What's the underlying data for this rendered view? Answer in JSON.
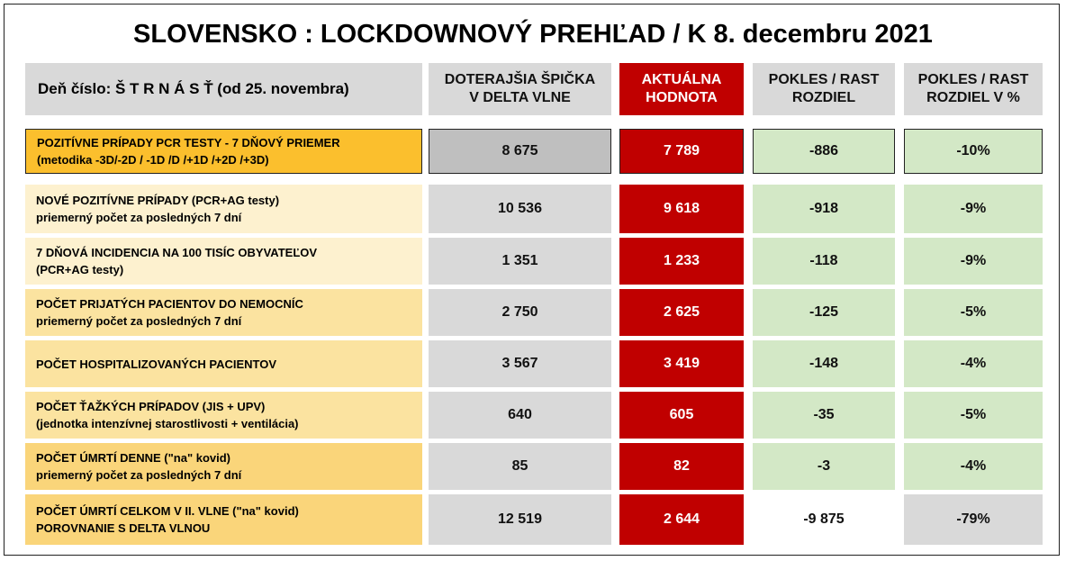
{
  "header": {
    "title": "SLOVENSKO : LOCKDOWNOVÝ PREHĽAD  / K 8. decembru 2021",
    "day_label": "Deň číslo:  Š T R N Á S Ť (od 25. novembra)",
    "columns": [
      [
        "DOTERAJŠIA ŠPIČKA",
        "V DELTA VLNE"
      ],
      [
        "AKTUÁLNA",
        "HODNOTA"
      ],
      [
        "POKLES / RAST",
        "ROZDIEL"
      ],
      [
        "POKLES / RAST",
        "ROZDIEL V %"
      ]
    ]
  },
  "table": {
    "rows": [
      {
        "label": [
          "POZITÍVNE PRÍPADY PCR TESTY - 7 DŇOVÝ PRIEMER",
          "(metodika -3D/-2D / -1D /D /+1D /+2D /+3D)"
        ],
        "cells": [
          "8 675",
          "7 789",
          "-886",
          "-10%"
        ]
      },
      {
        "label": [
          "NOVÉ POZITÍVNE PRÍPADY (PCR+AG testy)",
          "priemerný počet za posledných 7 dní"
        ],
        "cells": [
          "10 536",
          "9 618",
          "-918",
          "-9%"
        ]
      },
      {
        "label": [
          "7 DŇOVÁ INCIDENCIA NA 100 TISÍC OBYVATEĽOV",
          "(PCR+AG testy)"
        ],
        "cells": [
          "1 351",
          "1 233",
          "-118",
          "-9%"
        ]
      },
      {
        "label": [
          "POČET PRIJATÝCH PACIENTOV DO NEMOCNÍC",
          "priemerný počet za posledných 7 dní"
        ],
        "cells": [
          "2 750",
          "2 625",
          "-125",
          "-5%"
        ]
      },
      {
        "label": [
          "POČET HOSPITALIZOVANÝCH PACIENTOV"
        ],
        "cells": [
          "3 567",
          "3 419",
          "-148",
          "-4%"
        ]
      },
      {
        "label": [
          "POČET ŤAŽKÝCH PRÍPADOV (JIS + UPV)",
          "(jednotka intenzívnej starostlivosti + ventilácia)"
        ],
        "cells": [
          "640",
          "605",
          "-35",
          "-5%"
        ]
      },
      {
        "label": [
          "POČET ÚMRTÍ DENNE (\"na\" kovid)",
          "priemerný počet za posledných 7 dní"
        ],
        "cells": [
          "85",
          "82",
          "-3",
          "-4%"
        ]
      },
      {
        "label": [
          "POČET ÚMRTÍ CELKOM V II. VLNE (\"na\" kovid)",
          "POROVNANIE S DELTA VLNOU"
        ],
        "cells": [
          "12 519",
          "2 644",
          "-9 875",
          "-79%"
        ]
      }
    ]
  }
}
